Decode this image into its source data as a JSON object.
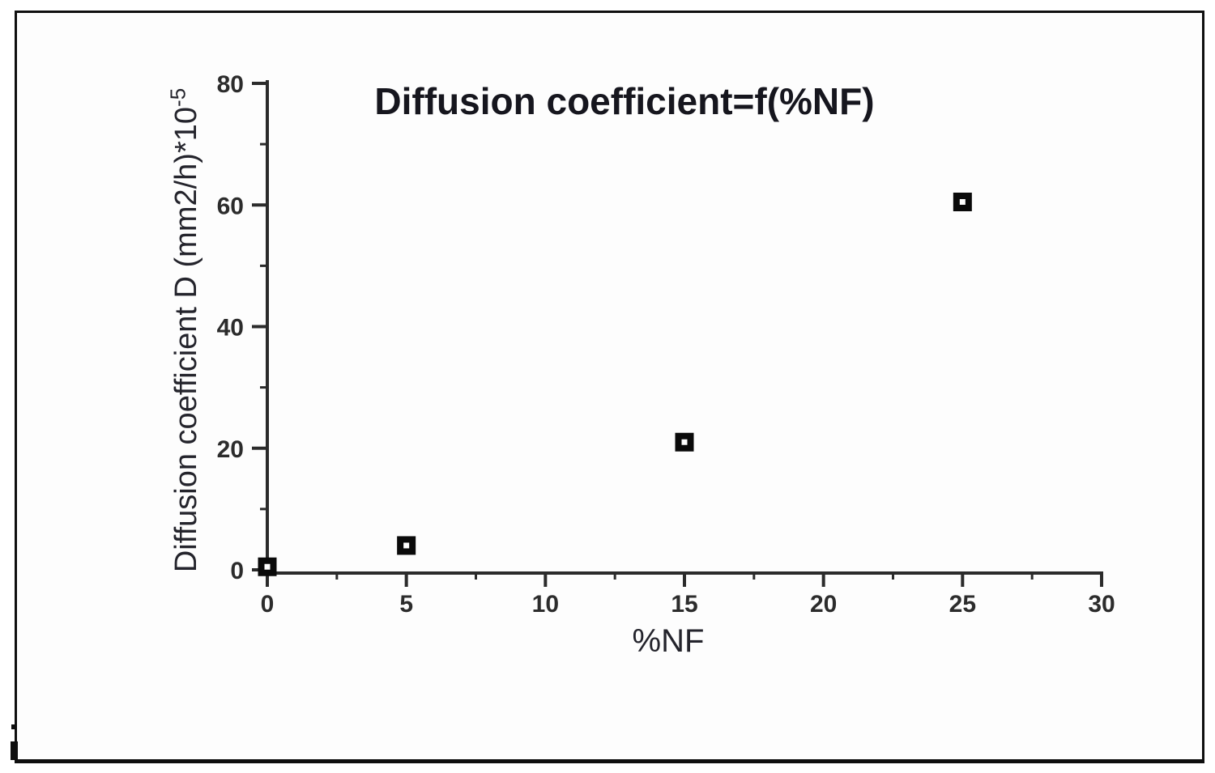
{
  "chart_data": {
    "type": "scatter",
    "title": "Diffusion coefficient=f(%NF)",
    "xlabel": "%NF",
    "ylabel": "Diffusion coefficient D (mm2/h)*10^-5",
    "ylabel_main": "Diffusion coefficient D (mm2/h)*10",
    "ylabel_sup": "-5",
    "x": [
      0,
      5,
      15,
      25
    ],
    "y": [
      0.5,
      4,
      21,
      60.5
    ],
    "series": [
      {
        "name": "Diffusion coefficient D",
        "points": [
          [
            0,
            0.5
          ],
          [
            5,
            4
          ],
          [
            15,
            21
          ],
          [
            25,
            60.5
          ]
        ]
      }
    ],
    "xlim": [
      0,
      30
    ],
    "ylim": [
      0,
      80
    ],
    "x_major_ticks": [
      0,
      5,
      10,
      15,
      20,
      25,
      30
    ],
    "x_minor_ticks": [
      2.5,
      7.5,
      12.5,
      17.5,
      22.5,
      27.5
    ],
    "y_major_ticks": [
      0,
      20,
      40,
      60,
      80
    ],
    "y_minor_ticks": [
      10,
      30,
      50,
      70
    ],
    "grid": false,
    "legend": false,
    "marker": "black-filled-square-with-white-center-dot",
    "colors": {
      "marker": "#0a0a0a",
      "marker_center": "#ffffff",
      "axis": "#2b2b2b",
      "tick_text": "#2c2c2c",
      "title_text": "#16161e",
      "frame": "#0f0f0f",
      "background": "#fdfdfd"
    }
  }
}
